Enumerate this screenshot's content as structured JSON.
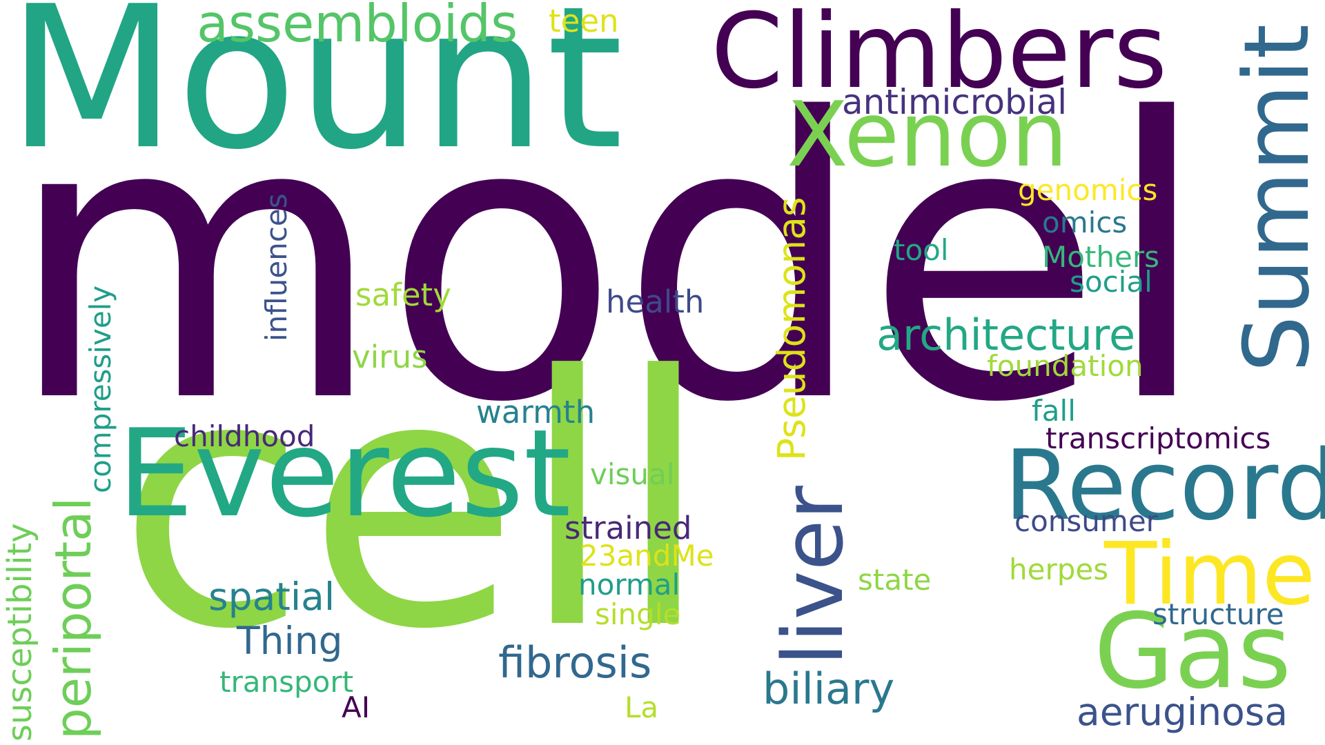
{
  "words": [
    {
      "id": "model",
      "text": "model",
      "color": "#440154"
    },
    {
      "id": "cell",
      "text": "cell",
      "color": "#8ed645"
    },
    {
      "id": "mount",
      "text": "Mount",
      "color": "#21a585"
    },
    {
      "id": "climbers",
      "text": "Climbers",
      "color": "#440154"
    },
    {
      "id": "xenon",
      "text": "Xenon",
      "color": "#7ad151"
    },
    {
      "id": "everest",
      "text": "Everest",
      "color": "#22a884"
    },
    {
      "id": "record",
      "text": "Record",
      "color": "#2a788e"
    },
    {
      "id": "summit",
      "text": "Summit",
      "color": "#31688e"
    },
    {
      "id": "time",
      "text": "Time",
      "color": "#fde725"
    },
    {
      "id": "gas",
      "text": "Gas",
      "color": "#7ad151"
    },
    {
      "id": "liver",
      "text": "liver",
      "color": "#3b528b"
    },
    {
      "id": "assembloids",
      "text": "assembloids",
      "color": "#54c568"
    },
    {
      "id": "teen",
      "text": "teen",
      "color": "#dde318"
    },
    {
      "id": "antimicrobial",
      "text": "antimicrobial",
      "color": "#46327e"
    },
    {
      "id": "genomics",
      "text": "genomics",
      "color": "#fde725"
    },
    {
      "id": "omics",
      "text": "omics",
      "color": "#2a788e"
    },
    {
      "id": "tool",
      "text": "tool",
      "color": "#22a884"
    },
    {
      "id": "mothers",
      "text": "Mothers",
      "color": "#35b779"
    },
    {
      "id": "social",
      "text": "social",
      "color": "#1f9e89"
    },
    {
      "id": "architecture",
      "text": "architecture",
      "color": "#22a884"
    },
    {
      "id": "foundation",
      "text": "foundation",
      "color": "#a0da39"
    },
    {
      "id": "fall",
      "text": "fall",
      "color": "#1f9e89"
    },
    {
      "id": "transcriptomics",
      "text": "transcriptomics",
      "color": "#440154"
    },
    {
      "id": "consumer",
      "text": "consumer",
      "color": "#3e4a89"
    },
    {
      "id": "herpes",
      "text": "herpes",
      "color": "#a0da39"
    },
    {
      "id": "structure",
      "text": "structure",
      "color": "#31688e"
    },
    {
      "id": "aeruginosa",
      "text": "aeruginosa",
      "color": "#3b528b"
    },
    {
      "id": "pseudomonas",
      "text": "Pseudomonas",
      "color": "#dde318"
    },
    {
      "id": "influences",
      "text": "influences",
      "color": "#3b528b"
    },
    {
      "id": "compressively",
      "text": "compressively",
      "color": "#1f9e89"
    },
    {
      "id": "periportal",
      "text": "periportal",
      "color": "#6ece58"
    },
    {
      "id": "susceptibility",
      "text": "susceptibility",
      "color": "#6ece58"
    },
    {
      "id": "safety",
      "text": "safety",
      "color": "#a0da39"
    },
    {
      "id": "virus",
      "text": "virus",
      "color": "#8ed645"
    },
    {
      "id": "health",
      "text": "health",
      "color": "#3e4a89"
    },
    {
      "id": "warmth",
      "text": "warmth",
      "color": "#26828e"
    },
    {
      "id": "childhood",
      "text": "childhood",
      "color": "#482878"
    },
    {
      "id": "visual",
      "text": "visual",
      "color": "#6ece58"
    },
    {
      "id": "strained",
      "text": "strained",
      "color": "#482878"
    },
    {
      "id": "23andme",
      "text": "23andMe",
      "color": "#dde318"
    },
    {
      "id": "normal",
      "text": "normal",
      "color": "#1f9e89"
    },
    {
      "id": "single",
      "text": "single",
      "color": "#b5de2b"
    },
    {
      "id": "state",
      "text": "state",
      "color": "#8ed645"
    },
    {
      "id": "spatial",
      "text": "spatial",
      "color": "#26828e"
    },
    {
      "id": "thing",
      "text": "Thing",
      "color": "#31688e"
    },
    {
      "id": "fibrosis",
      "text": "fibrosis",
      "color": "#31688e"
    },
    {
      "id": "biliary",
      "text": "biliary",
      "color": "#2a788e"
    },
    {
      "id": "transport",
      "text": "transport",
      "color": "#35b779"
    },
    {
      "id": "ai",
      "text": "AI",
      "color": "#440154"
    },
    {
      "id": "la",
      "text": "La",
      "color": "#b5de2b"
    }
  ]
}
